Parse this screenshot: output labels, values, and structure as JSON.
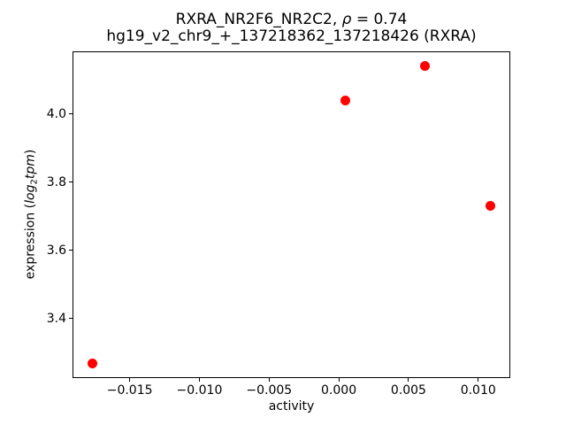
{
  "figure": {
    "title_line1_prefix": "RXRA_NR2F6_NR2C2, ",
    "title_rho": "ρ",
    "title_line1_suffix": " = 0.74",
    "title_line2": "hg19_v2_chr9_+_137218362_137218426 (RXRA)",
    "xlabel": "activity",
    "ylabel_prefix": "expression (",
    "ylabel_log": "log",
    "ylabel_sub": "2",
    "ylabel_tpm": "tpm",
    "ylabel_suffix": ")"
  },
  "chart_data": {
    "type": "scatter",
    "title": "RXRA_NR2F6_NR2C2, ρ = 0.74",
    "subtitle": "hg19_v2_chr9_+_137218362_137218426 (RXRA)",
    "xlabel": "activity",
    "ylabel": "expression (log2 tpm)",
    "points": [
      {
        "x": -0.0177,
        "y": 3.27
      },
      {
        "x": 0.0005,
        "y": 4.04
      },
      {
        "x": 0.0062,
        "y": 4.14
      },
      {
        "x": 0.0109,
        "y": 3.73
      }
    ],
    "marker_color": "#ff0000",
    "marker_size_px": 11,
    "xlim": [
      -0.0191,
      0.0123
    ],
    "ylim": [
      3.226,
      4.184
    ],
    "xticks": {
      "values": [
        -0.015,
        -0.01,
        -0.005,
        0.0,
        0.005,
        0.01
      ],
      "labels": [
        "−0.015",
        "−0.010",
        "−0.005",
        "0.000",
        "0.005",
        "0.010"
      ]
    },
    "yticks": {
      "values": [
        3.4,
        3.6,
        3.8,
        4.0
      ],
      "labels": [
        "3.4",
        "3.6",
        "3.8",
        "4.0"
      ]
    },
    "grid": false,
    "legend": null,
    "background": "#ffffff",
    "spine_color": "#000000"
  }
}
